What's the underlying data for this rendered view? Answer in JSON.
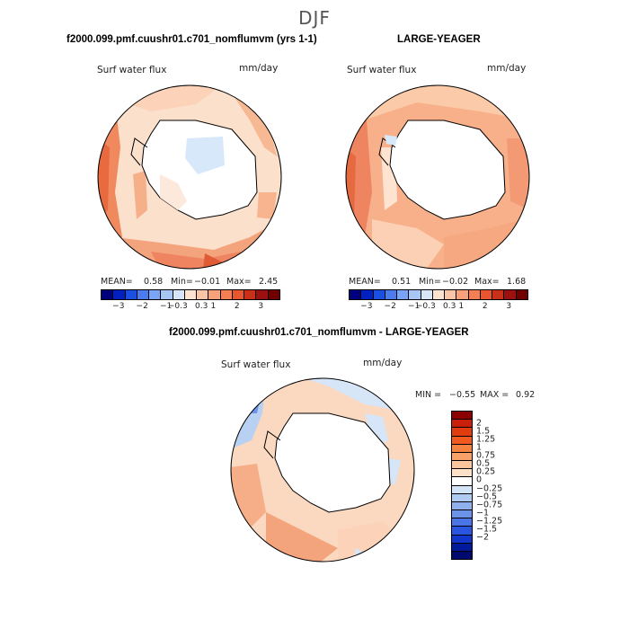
{
  "season": "DJF",
  "panel1": {
    "title": "f2000.099.pmf.cuushr01.c701_nomflumvm (yrs 1-1)",
    "variable": "Surf water flux",
    "units": "mm/day",
    "mean_label": "MEAN=",
    "mean": "0.58",
    "min_label": "Min=",
    "min": "−0.01",
    "max_label": "Max=",
    "max": "2.45"
  },
  "panel2": {
    "title": "LARGE-YEAGER",
    "variable": "Surf water flux",
    "units": "mm/day",
    "mean_label": "MEAN=",
    "mean": "0.51",
    "min_label": "Min=",
    "min": "−0.02",
    "max_label": "Max=",
    "max": "1.68"
  },
  "panel3": {
    "title": "f2000.099.pmf.cuushr01.c701_nomflumvm - LARGE-YEAGER",
    "variable": "Surf water flux",
    "units": "mm/day",
    "min_label": "MIN =",
    "min": "−0.55",
    "max_label": "MAX =",
    "max": "0.92"
  },
  "colorbar_top": {
    "colors": [
      "#00007f",
      "#0020c0",
      "#1a4fe0",
      "#4a7cf0",
      "#7aa4f5",
      "#a8c5f5",
      "#d6e6f8",
      "#fde3d0",
      "#fbc6a8",
      "#f8a27c",
      "#f37f55",
      "#e8552f",
      "#c8301a",
      "#9c1010",
      "#700000"
    ],
    "ticks": [
      "−3",
      "−2",
      "−1",
      "−0.3",
      "0.3",
      "1",
      "2",
      "3"
    ]
  },
  "colorbar_diff": {
    "colors": [
      "#8b0000",
      "#c8200a",
      "#e03c10",
      "#f05a20",
      "#f5823f",
      "#f8a26a",
      "#fbc59c",
      "#fde0c6",
      "#ffffff",
      "#d4e4f7",
      "#b0cbf2",
      "#8eb1ee",
      "#6b93ea",
      "#4a75e6",
      "#2a55e0",
      "#1235cc",
      "#001a99",
      "#000a6e"
    ],
    "labels": [
      "2",
      "1.5",
      "1.25",
      "1",
      "0.75",
      "0.5",
      "0.25",
      "0",
      "−0.25",
      "−0.5",
      "−0.75",
      "−1",
      "−1.25",
      "−1.5",
      "−2"
    ]
  },
  "colors": {
    "land": "#ffffff",
    "coast": "#000000"
  }
}
